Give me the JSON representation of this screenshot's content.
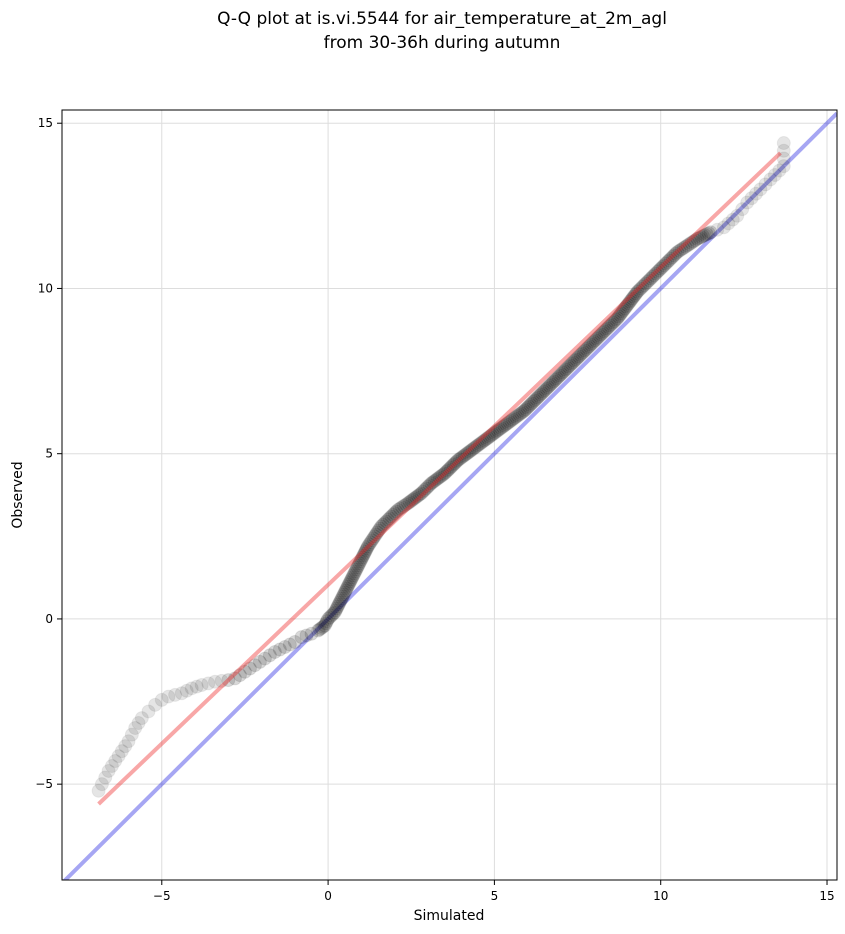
{
  "chart_data": {
    "type": "scatter",
    "title_line1": "Q-Q plot at is.vi.5544 for air_temperature_at_2m_agl",
    "title_line2": "from 30-36h during autumn",
    "xlabel": "Simulated",
    "ylabel": "Observed",
    "xlim": [
      -8.0,
      15.3
    ],
    "ylim": [
      -7.9,
      15.4
    ],
    "xticks": [
      -5,
      0,
      5,
      10,
      15
    ],
    "yticks": [
      -5,
      0,
      5,
      10,
      15
    ],
    "xtick_labels": [
      "−5",
      "0",
      "5",
      "10",
      "15"
    ],
    "ytick_labels": [
      "−5",
      "0",
      "5",
      "10",
      "15"
    ],
    "grid": true,
    "colors": {
      "points": "#000000",
      "identity_line": "#0000dd",
      "fit_line": "#ee2222",
      "grid": "#dddddd"
    },
    "identity_line": {
      "x": [
        -8.0,
        15.3
      ],
      "y": [
        -8.0,
        15.3
      ]
    },
    "fit_line": {
      "x": [
        -6.9,
        13.6
      ],
      "y": [
        -5.6,
        14.1
      ]
    },
    "quantiles": [
      [
        -6.9,
        -5.2
      ],
      [
        -6.8,
        -5.0
      ],
      [
        -6.7,
        -4.8
      ],
      [
        -6.6,
        -4.6
      ],
      [
        -6.4,
        -4.3
      ],
      [
        -6.2,
        -4.0
      ],
      [
        -6.0,
        -3.7
      ],
      [
        -5.8,
        -3.3
      ],
      [
        -5.6,
        -3.0
      ],
      [
        -5.4,
        -2.8
      ],
      [
        -5.2,
        -2.6
      ],
      [
        -5.0,
        -2.45
      ],
      [
        -4.8,
        -2.35
      ],
      [
        -4.4,
        -2.25
      ],
      [
        -4.1,
        -2.1
      ],
      [
        -3.8,
        -2.0
      ],
      [
        -3.4,
        -1.9
      ],
      [
        -3.0,
        -1.85
      ],
      [
        -2.8,
        -1.8
      ],
      [
        -2.5,
        -1.6
      ],
      [
        -2.2,
        -1.4
      ],
      [
        -1.9,
        -1.2
      ],
      [
        -1.6,
        -1.0
      ],
      [
        -1.3,
        -0.85
      ],
      [
        -1.0,
        -0.7
      ],
      [
        -0.8,
        -0.55
      ],
      [
        -0.5,
        -0.45
      ],
      [
        -0.3,
        -0.35
      ],
      [
        -0.1,
        -0.2
      ],
      [
        0.0,
        0.0
      ],
      [
        0.2,
        0.2
      ],
      [
        0.35,
        0.5
      ],
      [
        0.5,
        0.8
      ],
      [
        0.7,
        1.2
      ],
      [
        0.85,
        1.5
      ],
      [
        1.0,
        1.8
      ],
      [
        1.2,
        2.2
      ],
      [
        1.4,
        2.5
      ],
      [
        1.6,
        2.8
      ],
      [
        1.8,
        3.0
      ],
      [
        2.1,
        3.3
      ],
      [
        2.4,
        3.5
      ],
      [
        2.8,
        3.8
      ],
      [
        3.1,
        4.1
      ],
      [
        3.5,
        4.4
      ],
      [
        3.9,
        4.8
      ],
      [
        4.3,
        5.1
      ],
      [
        4.7,
        5.4
      ],
      [
        5.1,
        5.7
      ],
      [
        5.5,
        6.0
      ],
      [
        5.9,
        6.3
      ],
      [
        6.3,
        6.7
      ],
      [
        6.7,
        7.1
      ],
      [
        7.1,
        7.5
      ],
      [
        7.5,
        7.9
      ],
      [
        7.9,
        8.3
      ],
      [
        8.3,
        8.7
      ],
      [
        8.7,
        9.1
      ],
      [
        9.0,
        9.5
      ],
      [
        9.3,
        9.9
      ],
      [
        9.6,
        10.2
      ],
      [
        9.9,
        10.5
      ],
      [
        10.2,
        10.8
      ],
      [
        10.5,
        11.1
      ],
      [
        10.8,
        11.3
      ],
      [
        11.1,
        11.5
      ],
      [
        11.5,
        11.7
      ],
      [
        11.9,
        11.85
      ],
      [
        12.3,
        12.2
      ],
      [
        12.6,
        12.6
      ],
      [
        13.0,
        13.0
      ],
      [
        13.3,
        13.3
      ],
      [
        13.7,
        13.7
      ],
      [
        13.7,
        14.4
      ]
    ]
  }
}
